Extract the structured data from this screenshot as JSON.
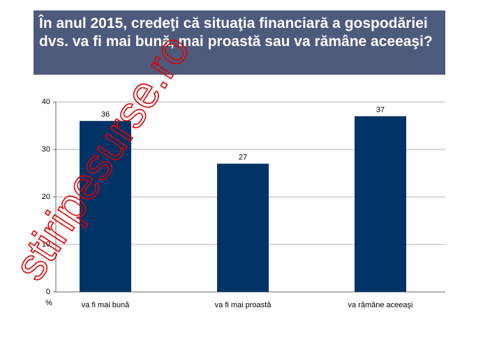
{
  "chart_data": {
    "type": "bar",
    "title": "În anul 2015, credeţi că situaţia financiară a gospodăriei dvs. va fi mai bună, mai proastă sau va rămâne aceeaşi?",
    "categories": [
      "va fi mai bună",
      "va fi mai proastă",
      "va rămâne aceeaşi"
    ],
    "values": [
      36,
      27,
      37
    ],
    "color": "#003366",
    "ylim": [
      0,
      40
    ],
    "yticks": [
      0,
      10,
      20,
      30,
      40
    ],
    "grid": true,
    "y_label": "%",
    "watermark": "stiripesurse.ro"
  }
}
